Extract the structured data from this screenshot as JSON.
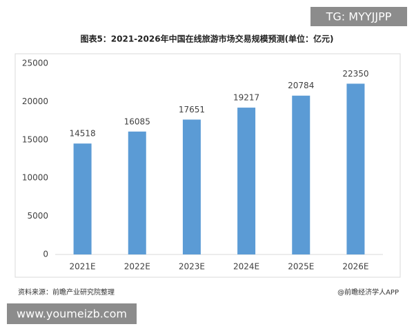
{
  "chart_data": {
    "type": "bar",
    "title": "图表5：2021-2026年中国在线旅游市场交易规模预测(单位：亿元)",
    "categories": [
      "2021E",
      "2022E",
      "2023E",
      "2024E",
      "2025E",
      "2026E"
    ],
    "values": [
      14518,
      16085,
      17651,
      19217,
      20784,
      22350
    ],
    "color": "#5b9bd5",
    "ylim": [
      0,
      25000
    ],
    "yticks": [
      0,
      5000,
      10000,
      15000,
      20000,
      25000
    ],
    "grid": false
  },
  "source": "资料来源：前瞻产业研究院整理",
  "credit": "@前瞻经济学人APP",
  "watermark_top": "TG: MYYJJPP",
  "watermark_bottom": "www.youmeizb.com"
}
